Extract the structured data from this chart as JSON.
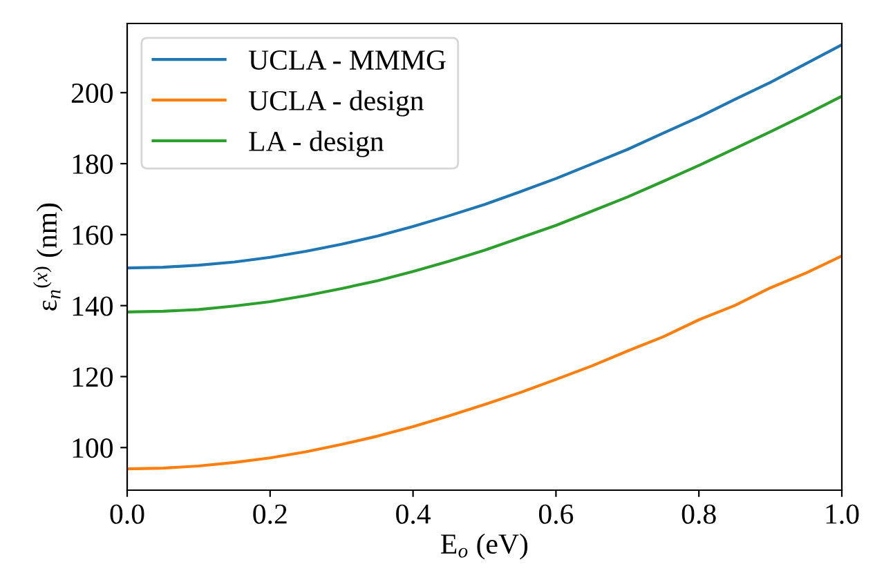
{
  "chart_data": {
    "type": "line",
    "xlabel": "E$_{o}$ (eV)",
    "ylabel": "ε$_{n}$$^{(x)}$ (nm)",
    "x": [
      0.0,
      0.05,
      0.1,
      0.15,
      0.2,
      0.25,
      0.3,
      0.35,
      0.4,
      0.45,
      0.5,
      0.55,
      0.6,
      0.65,
      0.7,
      0.75,
      0.8,
      0.85,
      0.9,
      0.95,
      1.0
    ],
    "series": [
      {
        "name": "UCLA - MMMG",
        "color": "#1f77b4",
        "values": [
          150.6,
          150.8,
          151.4,
          152.3,
          153.6,
          155.3,
          157.3,
          159.6,
          162.3,
          165.3,
          168.5,
          172.1,
          175.8,
          179.9,
          184.0,
          188.6,
          193.1,
          198.1,
          202.9,
          208.2,
          213.5
        ]
      },
      {
        "name": "UCLA - design",
        "color": "#ff7f0e",
        "values": [
          94.0,
          94.2,
          94.8,
          95.8,
          97.1,
          98.8,
          100.9,
          103.2,
          105.9,
          108.9,
          112.1,
          115.5,
          119.2,
          123.0,
          127.2,
          131.2,
          136.0,
          140.0,
          145.0,
          149.2,
          154.0
        ]
      },
      {
        "name": "LA - design",
        "color": "#2ca02c",
        "values": [
          138.2,
          138.4,
          138.9,
          139.9,
          141.1,
          142.8,
          144.8,
          147.0,
          149.6,
          152.5,
          155.6,
          159.1,
          162.6,
          166.6,
          170.6,
          175.0,
          179.5,
          184.2,
          189.0,
          193.9,
          199.0
        ]
      }
    ],
    "xlim": [
      0.0,
      1.0
    ],
    "ylim": [
      88,
      219.5
    ],
    "xticks": [
      {
        "value": 0.0,
        "label": "0.0"
      },
      0.2,
      0.4,
      0.6,
      0.8,
      {
        "value": 1.0,
        "label": "1.0"
      }
    ],
    "yticks": [
      100,
      120,
      140,
      160,
      180,
      200
    ],
    "legend": "top left",
    "grid": false
  }
}
